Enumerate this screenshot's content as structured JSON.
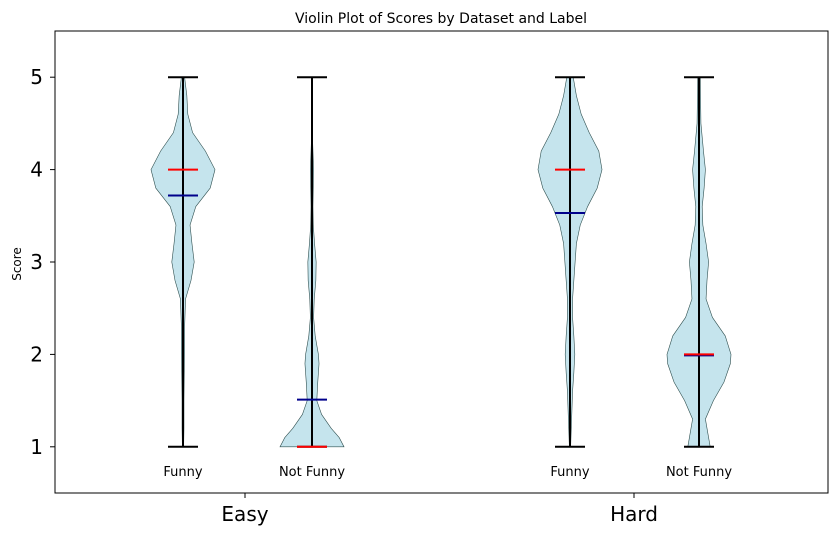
{
  "chart_data": {
    "type": "violin",
    "title": "Violin Plot of Scores by Dataset and Label",
    "ylabel": "Score",
    "xlabel": "",
    "ylim": [
      0.5,
      5.5
    ],
    "yticks": [
      1,
      2,
      3,
      4,
      5
    ],
    "groups": [
      "Easy",
      "Hard"
    ],
    "grid": false,
    "colors": {
      "violin_fill": "#add8e6",
      "violin_edge": "#2f4f4f",
      "whisker": "#000000",
      "median": "#ff0000",
      "mean": "#00008b"
    },
    "violins": [
      {
        "group": "Easy",
        "label": "Funny",
        "min": 1,
        "max": 5,
        "median": 4,
        "mean": 3.72,
        "density": [
          [
            1,
            0.02
          ],
          [
            1.2,
            0.03
          ],
          [
            1.5,
            0.03
          ],
          [
            1.8,
            0.04
          ],
          [
            2.0,
            0.05
          ],
          [
            2.3,
            0.05
          ],
          [
            2.6,
            0.08
          ],
          [
            2.8,
            0.25
          ],
          [
            3.0,
            0.35
          ],
          [
            3.2,
            0.28
          ],
          [
            3.4,
            0.22
          ],
          [
            3.6,
            0.4
          ],
          [
            3.8,
            0.85
          ],
          [
            4.0,
            1.0
          ],
          [
            4.2,
            0.7
          ],
          [
            4.4,
            0.3
          ],
          [
            4.6,
            0.15
          ],
          [
            4.8,
            0.12
          ],
          [
            5.0,
            0.05
          ]
        ]
      },
      {
        "group": "Easy",
        "label": "Not Funny",
        "min": 1,
        "max": 5,
        "median": 1,
        "mean": 1.51,
        "density": [
          [
            1,
            1.0
          ],
          [
            1.1,
            0.85
          ],
          [
            1.2,
            0.6
          ],
          [
            1.35,
            0.3
          ],
          [
            1.5,
            0.15
          ],
          [
            1.7,
            0.18
          ],
          [
            1.9,
            0.22
          ],
          [
            2.0,
            0.2
          ],
          [
            2.2,
            0.1
          ],
          [
            2.4,
            0.05
          ],
          [
            2.6,
            0.07
          ],
          [
            2.8,
            0.12
          ],
          [
            3.0,
            0.13
          ],
          [
            3.2,
            0.08
          ],
          [
            3.4,
            0.04
          ],
          [
            3.6,
            0.03
          ],
          [
            3.8,
            0.04
          ],
          [
            4.0,
            0.05
          ],
          [
            4.3,
            0.02
          ],
          [
            5.0,
            0.02
          ]
        ]
      },
      {
        "group": "Hard",
        "label": "Funny",
        "min": 1,
        "max": 5,
        "median": 4,
        "mean": 3.53,
        "density": [
          [
            1,
            0.02
          ],
          [
            1.3,
            0.05
          ],
          [
            1.6,
            0.08
          ],
          [
            1.8,
            0.12
          ],
          [
            2.0,
            0.15
          ],
          [
            2.2,
            0.12
          ],
          [
            2.4,
            0.08
          ],
          [
            2.6,
            0.08
          ],
          [
            2.8,
            0.12
          ],
          [
            3.0,
            0.16
          ],
          [
            3.2,
            0.2
          ],
          [
            3.4,
            0.32
          ],
          [
            3.6,
            0.55
          ],
          [
            3.8,
            0.85
          ],
          [
            4.0,
            1.0
          ],
          [
            4.2,
            0.9
          ],
          [
            4.4,
            0.6
          ],
          [
            4.6,
            0.35
          ],
          [
            4.8,
            0.2
          ],
          [
            5.0,
            0.1
          ]
        ]
      },
      {
        "group": "Hard",
        "label": "Not Funny",
        "min": 1,
        "max": 5,
        "median": 2,
        "mean": 1.99,
        "density": [
          [
            1,
            0.35
          ],
          [
            1.1,
            0.3
          ],
          [
            1.3,
            0.2
          ],
          [
            1.5,
            0.45
          ],
          [
            1.7,
            0.78
          ],
          [
            1.9,
            0.98
          ],
          [
            2.0,
            1.0
          ],
          [
            2.2,
            0.82
          ],
          [
            2.4,
            0.42
          ],
          [
            2.6,
            0.22
          ],
          [
            2.8,
            0.25
          ],
          [
            3.0,
            0.3
          ],
          [
            3.2,
            0.22
          ],
          [
            3.4,
            0.12
          ],
          [
            3.6,
            0.1
          ],
          [
            3.8,
            0.16
          ],
          [
            4.0,
            0.2
          ],
          [
            4.2,
            0.14
          ],
          [
            4.5,
            0.06
          ],
          [
            5.0,
            0.04
          ]
        ]
      }
    ]
  }
}
